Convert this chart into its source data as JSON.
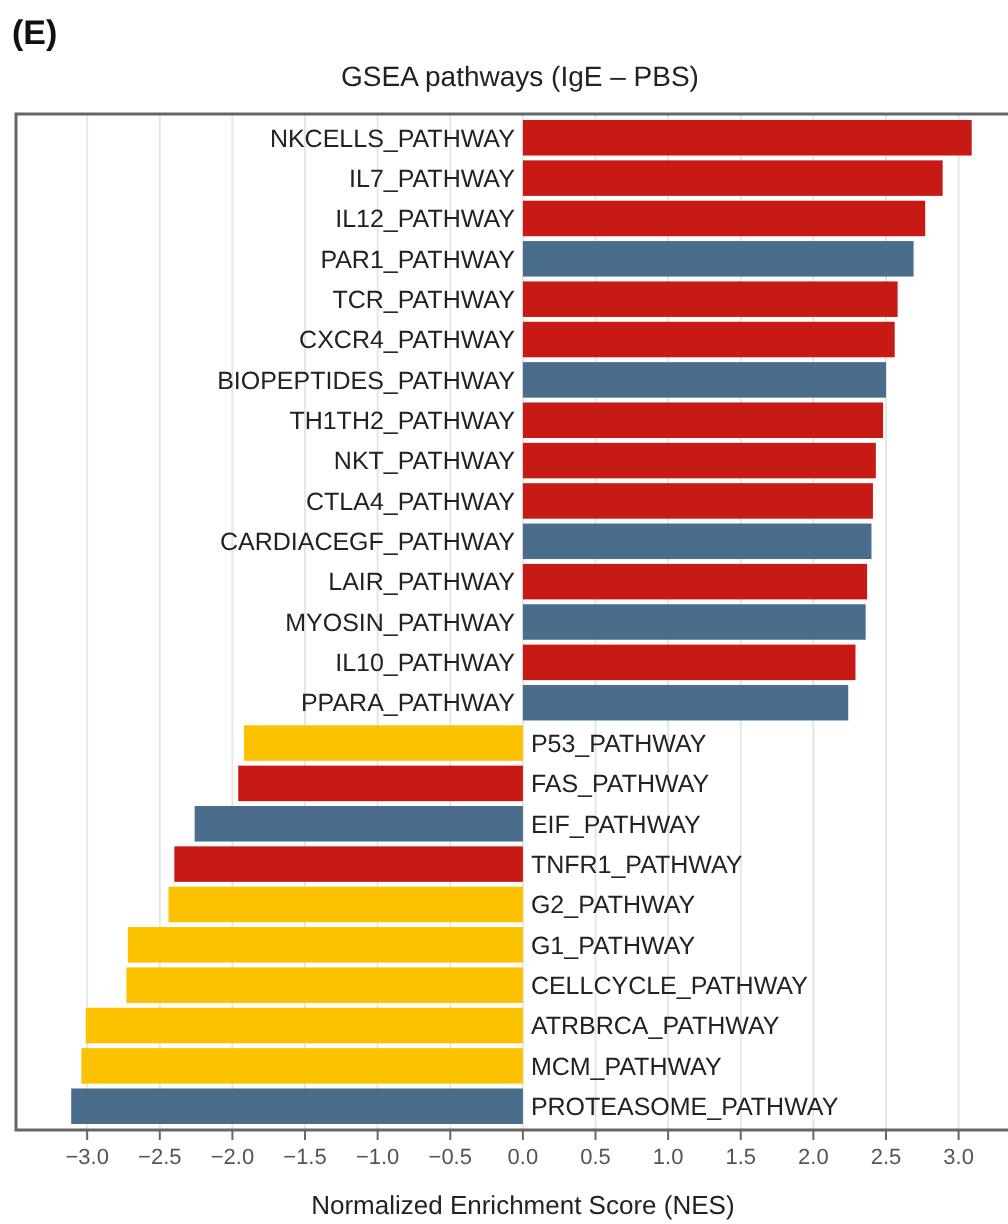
{
  "chart_data": {
    "type": "bar",
    "orientation": "horizontal",
    "title": "GSEA pathways (IgE – PBS)",
    "xlabel": "Normalized Enrichment Score (NES)",
    "annotations": [
      "(E)"
    ],
    "categories": [
      "NKCELLS_PATHWAY",
      "IL7_PATHWAY",
      "IL12_PATHWAY",
      "PAR1_PATHWAY",
      "TCR_PATHWAY",
      "CXCR4_PATHWAY",
      "BIOPEPTIDES_PATHWAY",
      "TH1TH2_PATHWAY",
      "NKT_PATHWAY",
      "CTLA4_PATHWAY",
      "CARDIACEGF_PATHWAY",
      "LAIR_PATHWAY",
      "MYOSIN_PATHWAY",
      "IL10_PATHWAY",
      "PPARA_PATHWAY",
      "P53_PATHWAY",
      "FAS_PATHWAY",
      "EIF_PATHWAY",
      "TNFR1_PATHWAY",
      "G2_PATHWAY",
      "G1_PATHWAY",
      "CELLCYCLE_PATHWAY",
      "ATRBRCA_PATHWAY",
      "MCM_PATHWAY",
      "PROTEASOME_PATHWAY"
    ],
    "values": [
      3.09,
      2.89,
      2.77,
      2.69,
      2.58,
      2.56,
      2.5,
      2.48,
      2.43,
      2.41,
      2.4,
      2.37,
      2.36,
      2.29,
      2.24,
      -1.92,
      -1.96,
      -2.26,
      -2.4,
      -2.44,
      -2.72,
      -2.73,
      -3.01,
      -3.04,
      -3.11
    ],
    "colors": [
      "#c81a14",
      "#c81a14",
      "#c81a14",
      "#4a6d8c",
      "#c81a14",
      "#c81a14",
      "#4a6d8c",
      "#c81a14",
      "#c81a14",
      "#c81a14",
      "#4a6d8c",
      "#c81a14",
      "#4a6d8c",
      "#c81a14",
      "#4a6d8c",
      "#fcc200",
      "#c81a14",
      "#4a6d8c",
      "#c81a14",
      "#fcc200",
      "#fcc200",
      "#fcc200",
      "#fcc200",
      "#fcc200",
      "#4a6d8c"
    ],
    "xlim": [
      -3.49,
      3.34
    ],
    "xticks": [
      {
        "value": -3.0,
        "label": "−3.0"
      },
      {
        "value": -2.5,
        "label": "−2.5"
      },
      {
        "value": -2.0,
        "label": "−2.0"
      },
      {
        "value": -1.5,
        "label": "−1.5"
      },
      {
        "value": -1.0,
        "label": "−1.0"
      },
      {
        "value": -0.5,
        "label": "−0.5"
      },
      {
        "value": 0,
        "label": "0.0"
      },
      0.5,
      {
        "value": 1,
        "label": "1.0"
      },
      1.5,
      {
        "value": 2,
        "label": "2.0"
      },
      2.5,
      {
        "value": 3,
        "label": "3.0"
      }
    ],
    "grid": "x"
  }
}
